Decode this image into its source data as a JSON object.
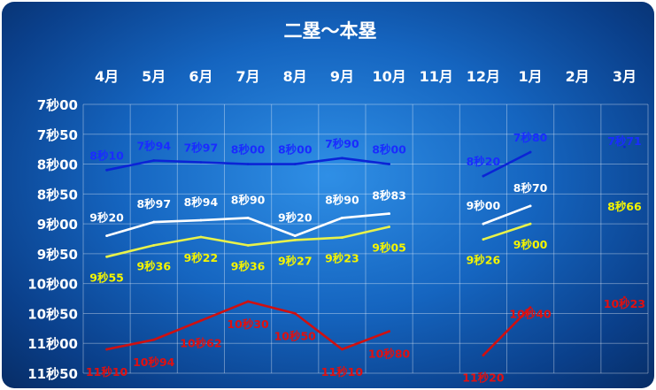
{
  "chart_data": {
    "type": "line",
    "title": "二塁～本塁",
    "categories": [
      "4月",
      "5月",
      "6月",
      "7月",
      "8月",
      "9月",
      "10月",
      "11月",
      "12月",
      "1月",
      "2月",
      "3月"
    ],
    "y_tick_labels": [
      "7秒00",
      "7秒50",
      "8秒00",
      "8秒50",
      "9秒00",
      "9秒50",
      "10秒00",
      "10秒50",
      "11秒00",
      "11秒50"
    ],
    "ylim": [
      7.0,
      11.5
    ],
    "y_inverted": true,
    "grid": true,
    "series": [
      {
        "color": "#0b24d6",
        "label_color": "#1a2cff",
        "values": [
          8.1,
          7.94,
          7.97,
          8.0,
          8.0,
          7.9,
          8.0,
          null,
          8.2,
          7.8,
          null,
          7.71
        ],
        "labels": [
          "8秒10",
          "7秒94",
          "7秒97",
          "8秒00",
          "8秒00",
          "7秒90",
          "8秒00",
          "",
          "8秒20",
          "7秒80",
          "",
          "7秒71"
        ]
      },
      {
        "color": "#ffffff",
        "label_color": "#ffffff",
        "values": [
          9.2,
          8.97,
          8.94,
          8.9,
          9.2,
          8.9,
          8.83,
          null,
          9.0,
          8.7,
          null,
          null
        ],
        "labels": [
          "9秒20",
          "8秒97",
          "8秒94",
          "8秒90",
          "9秒20",
          "8秒90",
          "8秒83",
          "",
          "9秒00",
          "8秒70",
          "",
          ""
        ]
      },
      {
        "color": "#e8f24a",
        "label_color": "#f4f400",
        "values": [
          9.55,
          9.36,
          9.22,
          9.36,
          9.27,
          9.23,
          9.05,
          null,
          9.26,
          9.0,
          null,
          8.66
        ],
        "labels": [
          "9秒55",
          "9秒36",
          "9秒22",
          "9秒36",
          "9秒27",
          "9秒23",
          "9秒05",
          "",
          "9秒26",
          "9秒00",
          "",
          "8秒66"
        ]
      },
      {
        "color": "#d01010",
        "label_color": "#e01010",
        "values": [
          11.1,
          10.94,
          10.62,
          10.3,
          10.5,
          11.1,
          10.8,
          null,
          11.2,
          10.4,
          null,
          10.23
        ],
        "labels": [
          "11秒10",
          "10秒94",
          "10秒62",
          "10秒30",
          "10秒50",
          "11秒10",
          "10秒80",
          "",
          "11秒20",
          "10秒40",
          "",
          "10秒23"
        ]
      }
    ]
  }
}
